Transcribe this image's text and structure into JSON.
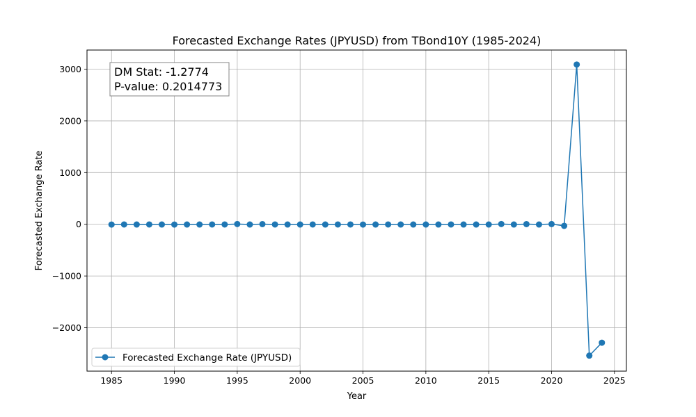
{
  "chart_data": {
    "type": "line",
    "title": "Forecasted Exchange Rates (JPYUSD) from TBond10Y (1985-2024)",
    "xlabel": "Year",
    "ylabel": "Forecasted Exchange Rate",
    "xlim": [
      1983.05,
      2025.95
    ],
    "ylim": [
      -2840,
      3370
    ],
    "x_ticks": [
      1985,
      1990,
      1995,
      2000,
      2005,
      2010,
      2015,
      2020,
      2025
    ],
    "y_ticks": [
      -2000,
      -1000,
      0,
      1000,
      2000,
      3000
    ],
    "y_tick_labels": [
      "−2000",
      "−1000",
      "0",
      "1000",
      "2000",
      "3000"
    ],
    "grid": true,
    "legend_position": "lower-left",
    "series": [
      {
        "name": "Forecasted Exchange Rate (JPYUSD)",
        "color": "#1f77b4",
        "marker": "circle",
        "x": [
          1985,
          1986,
          1987,
          1988,
          1989,
          1990,
          1991,
          1992,
          1993,
          1994,
          1995,
          1996,
          1997,
          1998,
          1999,
          2000,
          2001,
          2002,
          2003,
          2004,
          2005,
          2006,
          2007,
          2008,
          2009,
          2010,
          2011,
          2012,
          2013,
          2014,
          2015,
          2016,
          2017,
          2018,
          2019,
          2020,
          2021,
          2022,
          2023,
          2024
        ],
        "y": [
          -5,
          -3,
          -4,
          -3,
          -4,
          -5,
          -4,
          -4,
          -3,
          -3,
          5,
          -4,
          3,
          -3,
          -4,
          -4,
          -3,
          -4,
          -3,
          -3,
          -5,
          -4,
          -3,
          -4,
          -4,
          -4,
          -4,
          -3,
          -4,
          -4,
          -4,
          5,
          -4,
          3,
          -4,
          4,
          -30,
          3090,
          -2540,
          -2290
        ]
      }
    ],
    "annotation": {
      "lines": [
        "DM Stat: -1.2774",
        "P-value: 0.2014773"
      ]
    }
  }
}
